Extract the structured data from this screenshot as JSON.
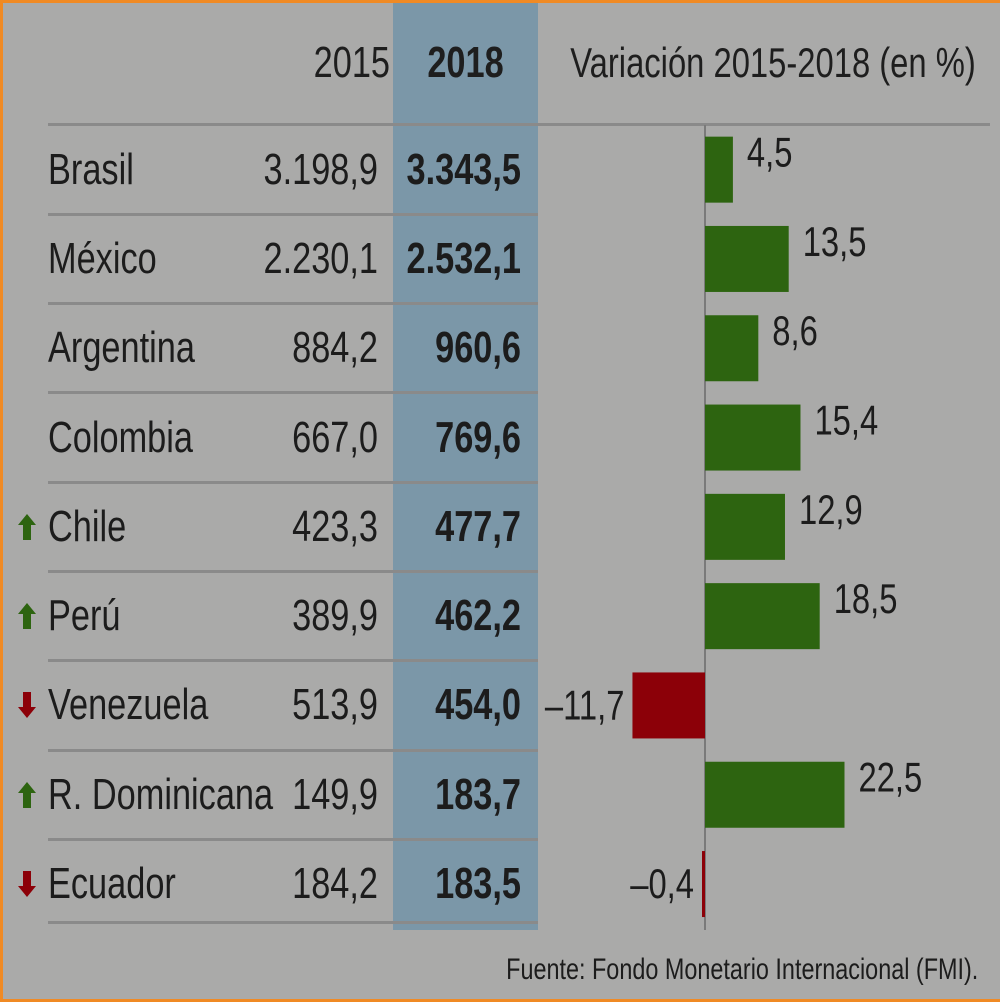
{
  "header": {
    "col_2015": "2015",
    "col_2018": "2018",
    "col_variation": "Variación 2015-2018 (en %)"
  },
  "colors": {
    "background": "#aaaaa9",
    "highlight_column": "#7b97a8",
    "positive": "#2d6410",
    "negative": "#8c0008",
    "border": "#f08a24"
  },
  "chart_data": {
    "type": "bar",
    "title": "",
    "xlabel": "",
    "ylabel": "",
    "categories": [
      "Brasil",
      "México",
      "Argentina",
      "Colombia",
      "Chile",
      "Perú",
      "Venezuela",
      "R. Dominicana",
      "Ecuador"
    ],
    "series": [
      {
        "name": "Variación 2015-2018 (en %)",
        "values": [
          4.5,
          13.5,
          8.6,
          15.4,
          12.9,
          18.5,
          -11.7,
          22.5,
          -0.4
        ]
      }
    ],
    "labels": [
      "4,5",
      "13,5",
      "8,6",
      "15,4",
      "12,9",
      "18,5",
      "–11,7",
      "22,5",
      "–0,4"
    ],
    "orientation": "horizontal",
    "grid": false
  },
  "rows": [
    {
      "country": "Brasil",
      "v2015": "3.198,9",
      "v2018": "3.343,5",
      "trend": ""
    },
    {
      "country": "México",
      "v2015": "2.230,1",
      "v2018": "2.532,1",
      "trend": ""
    },
    {
      "country": "Argentina",
      "v2015": "884,2",
      "v2018": "960,6",
      "trend": ""
    },
    {
      "country": "Colombia",
      "v2015": "667,0",
      "v2018": "769,6",
      "trend": ""
    },
    {
      "country": "Chile",
      "v2015": "423,3",
      "v2018": "477,7",
      "trend": "up"
    },
    {
      "country": "Perú",
      "v2015": "389,9",
      "v2018": "462,2",
      "trend": "up"
    },
    {
      "country": "Venezuela",
      "v2015": "513,9",
      "v2018": "454,0",
      "trend": "down"
    },
    {
      "country": "R. Dominicana",
      "v2015": "149,9",
      "v2018": "183,7",
      "trend": "up"
    },
    {
      "country": "Ecuador",
      "v2015": "184,2",
      "v2018": "183,5",
      "trend": "down"
    }
  ],
  "footer": {
    "source": "Fuente: Fondo Monetario Internacional (FMI)."
  }
}
